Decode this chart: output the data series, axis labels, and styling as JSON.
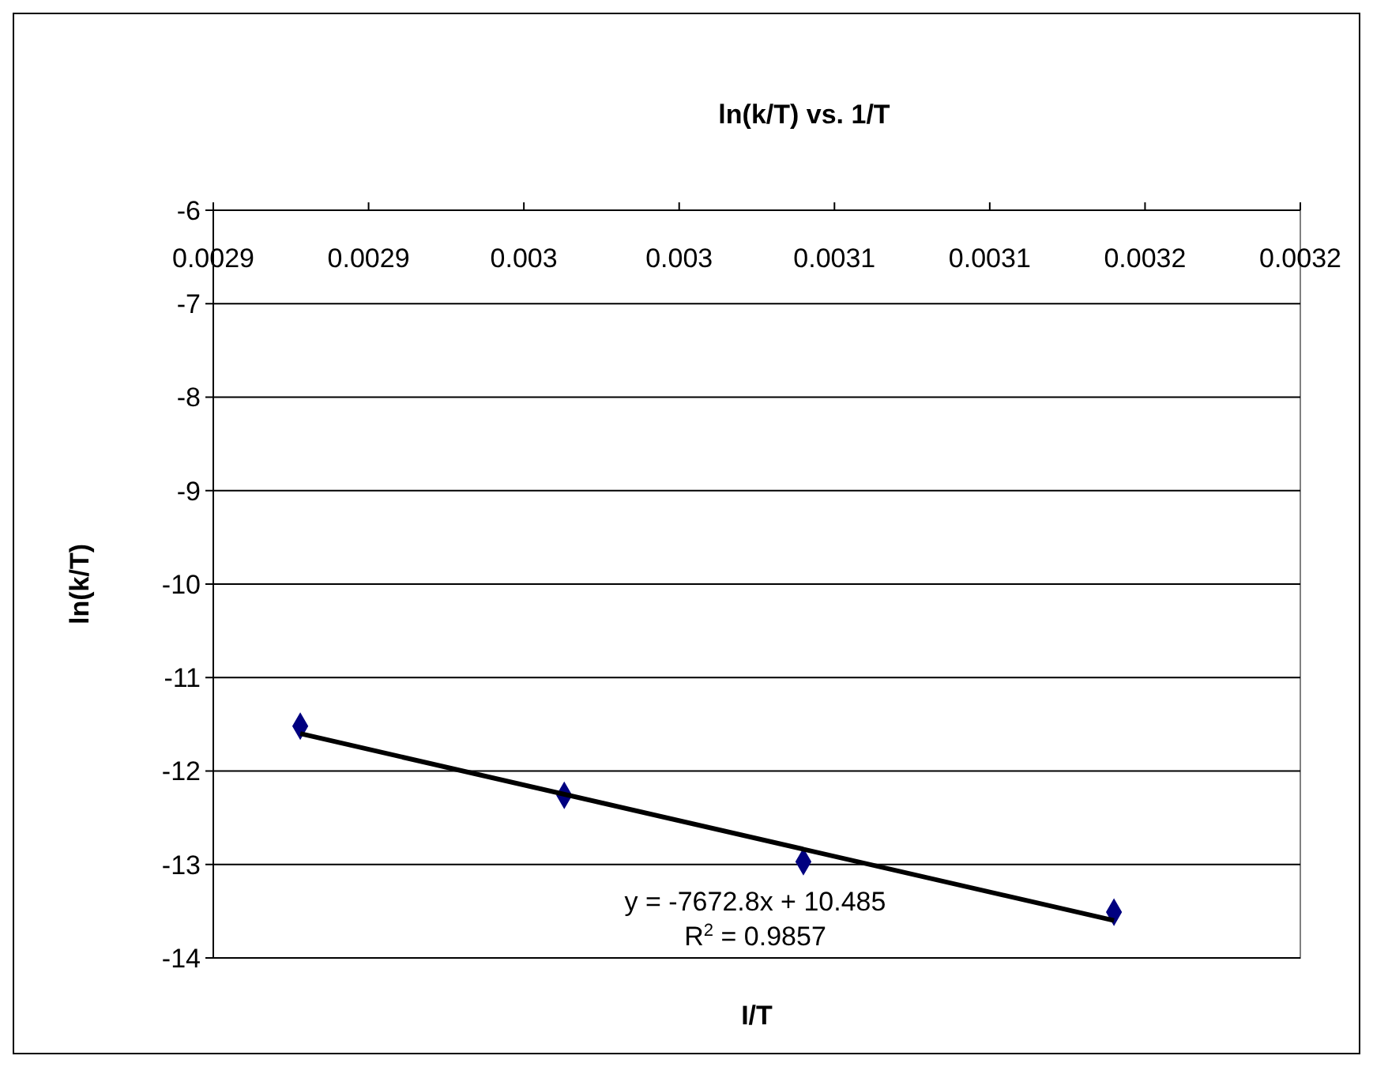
{
  "chart_data": {
    "type": "scatter",
    "title": "ln(k/T) vs. 1/T",
    "xlabel": "I/T",
    "ylabel": "ln(k/T)",
    "x": [
      0.002878,
      0.002963,
      0.00304,
      0.00314
    ],
    "series": [
      {
        "type": "scatter",
        "color": "#000080",
        "marker": "diamond",
        "values": [
          -11.52,
          -12.26,
          -12.97,
          -13.51
        ]
      },
      {
        "type": "line",
        "color": "#000000",
        "marker": "none",
        "line_style": "solid",
        "x": [
          0.002878,
          0.00314
        ],
        "values": [
          -11.6,
          -13.6
        ]
      }
    ],
    "xlim": [
      0.00285,
      0.0032
    ],
    "xticks": [
      {
        "value": 0.00285,
        "label": "0.0029"
      },
      {
        "value": 0.0029,
        "label": "0.0029"
      },
      {
        "value": 0.00295,
        "label": "0.003"
      },
      {
        "value": 0.003,
        "label": "0.003"
      },
      {
        "value": 0.00305,
        "label": "0.0031"
      },
      {
        "value": 0.0031,
        "label": "0.0031"
      },
      {
        "value": 0.00315,
        "label": "0.0032"
      },
      {
        "value": 0.0032,
        "label": "0.0032"
      }
    ],
    "ylim": [
      -14,
      -6
    ],
    "yticks": [
      -14,
      -13,
      -12,
      -11,
      -10,
      -9,
      -8,
      -7,
      -6
    ],
    "grid": "y",
    "annotations": [
      "y = -7672.8x + 10.485",
      "R$^{2}$ = 0.9857"
    ]
  }
}
